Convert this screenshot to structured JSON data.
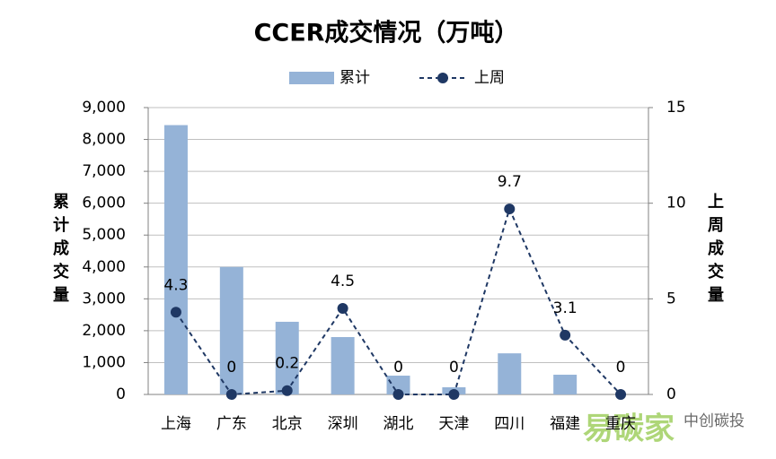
{
  "chart_data": {
    "type": "bar-line",
    "title": "CCER成交情况（万吨）",
    "y_label": "累计成交量",
    "y2_label": "上周成交量",
    "categories": [
      "上海",
      "广东",
      "北京",
      "深圳",
      "湖北",
      "天津",
      "四川",
      "福建",
      "重庆"
    ],
    "series": [
      {
        "name": "累计",
        "type": "bar",
        "color": "#95b3d7",
        "values": [
          8450,
          4000,
          2280,
          1800,
          590,
          225,
          1290,
          620,
          0
        ]
      },
      {
        "name": "上周",
        "type": "line",
        "axis": "y2",
        "color": "#1f3864",
        "values": [
          4.3,
          0,
          0.2,
          4.5,
          0,
          0,
          9.7,
          3.1,
          0
        ]
      }
    ],
    "ylim": [
      0,
      9000
    ],
    "yticks": [
      {
        "value": 0,
        "label": "0"
      },
      {
        "value": 1000,
        "label": "1,000"
      },
      {
        "value": 2000,
        "label": "2,000"
      },
      {
        "value": 3000,
        "label": "3,000"
      },
      {
        "value": 4000,
        "label": "4,000"
      },
      {
        "value": 5000,
        "label": "5,000"
      },
      {
        "value": 6000,
        "label": "6,000"
      },
      {
        "value": 7000,
        "label": "7,000"
      },
      {
        "value": 8000,
        "label": "8,000"
      },
      {
        "value": 9000,
        "label": "9,000"
      }
    ],
    "y2lim": [
      0,
      15
    ],
    "y2ticks": [
      0,
      5,
      10,
      15
    ],
    "grid": true,
    "legend": "top",
    "watermark": [
      "易碳家",
      "中创碳投"
    ]
  }
}
